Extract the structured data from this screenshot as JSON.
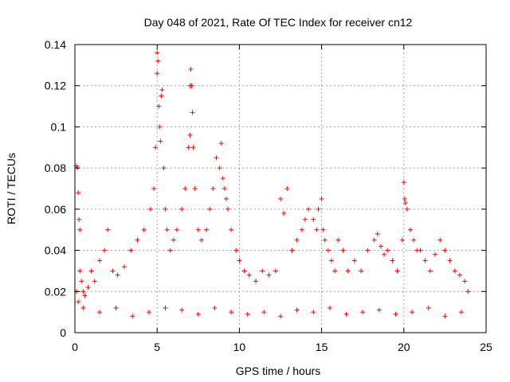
{
  "chart_data": {
    "type": "scatter",
    "title": "Day 048 of 2021, Rate Of TEC Index for receiver cn12",
    "xlabel": "GPS time / hours",
    "ylabel": "ROTI / TECUs",
    "xlim": [
      0,
      25
    ],
    "ylim": [
      0,
      0.14
    ],
    "xticks": [
      0,
      5,
      10,
      15,
      20,
      25
    ],
    "xtick_labels": [
      "0",
      "5",
      "10",
      "15",
      "20",
      "25"
    ],
    "yticks": [
      0,
      0.02,
      0.04,
      0.06,
      0.08,
      0.1,
      0.12,
      0.14
    ],
    "ytick_labels": [
      "0",
      "0.02",
      "0.04",
      "0.06",
      "0.08",
      "0.1",
      "0.12",
      "0.14"
    ],
    "grid": true,
    "marker": "+",
    "color": "#ff0000",
    "series": [
      {
        "name": "ROTI",
        "x": [
          0.1,
          0.15,
          0.2,
          0.25,
          0.3,
          0.1,
          0.2,
          0.3,
          0.4,
          0.5,
          0.6,
          0.8,
          1.0,
          1.2,
          1.5,
          1.8,
          2.0,
          2.3,
          2.6,
          3.0,
          3.4,
          3.8,
          4.2,
          4.6,
          4.8,
          4.9,
          5.0,
          5.0,
          5.05,
          5.1,
          5.15,
          5.2,
          5.25,
          5.3,
          5.4,
          5.5,
          5.6,
          5.8,
          6.0,
          6.2,
          6.5,
          6.7,
          6.9,
          7.0,
          7.0,
          7.05,
          7.1,
          7.15,
          7.2,
          7.3,
          7.5,
          7.7,
          8.0,
          8.2,
          8.4,
          8.6,
          8.8,
          8.9,
          9.0,
          9.1,
          9.2,
          9.3,
          9.5,
          9.8,
          10.0,
          10.3,
          10.6,
          11.0,
          11.4,
          11.8,
          12.2,
          12.5,
          12.7,
          12.9,
          13.2,
          13.5,
          13.8,
          14.0,
          14.2,
          14.5,
          14.7,
          14.8,
          15.0,
          15.1,
          15.2,
          15.4,
          15.6,
          15.8,
          16.0,
          16.3,
          16.6,
          17.0,
          17.4,
          17.8,
          18.2,
          18.4,
          18.6,
          18.8,
          19.0,
          19.3,
          19.6,
          19.9,
          20.0,
          20.05,
          20.1,
          20.2,
          20.4,
          20.6,
          20.8,
          21.0,
          21.3,
          21.6,
          21.9,
          22.2,
          22.5,
          22.8,
          23.1,
          23.4,
          23.7,
          23.9,
          0.5,
          1.5,
          2.5,
          3.5,
          4.5,
          5.5,
          6.5,
          7.5,
          8.5,
          9.5,
          10.5,
          11.5,
          12.5,
          13.5,
          14.5,
          15.5,
          16.5,
          17.5,
          18.5,
          19.5,
          20.5,
          21.5,
          22.5,
          23.5
        ],
        "y": [
          0.081,
          0.08,
          0.068,
          0.055,
          0.05,
          0.02,
          0.015,
          0.03,
          0.025,
          0.02,
          0.018,
          0.022,
          0.03,
          0.025,
          0.035,
          0.04,
          0.05,
          0.03,
          0.028,
          0.032,
          0.04,
          0.045,
          0.05,
          0.06,
          0.07,
          0.09,
          0.136,
          0.126,
          0.132,
          0.11,
          0.1,
          0.093,
          0.115,
          0.118,
          0.08,
          0.06,
          0.05,
          0.04,
          0.045,
          0.05,
          0.06,
          0.07,
          0.09,
          0.096,
          0.12,
          0.128,
          0.12,
          0.107,
          0.09,
          0.07,
          0.05,
          0.045,
          0.05,
          0.06,
          0.07,
          0.085,
          0.08,
          0.092,
          0.075,
          0.07,
          0.065,
          0.06,
          0.05,
          0.04,
          0.035,
          0.03,
          0.028,
          0.025,
          0.03,
          0.028,
          0.03,
          0.065,
          0.058,
          0.07,
          0.04,
          0.045,
          0.05,
          0.055,
          0.06,
          0.055,
          0.05,
          0.06,
          0.065,
          0.05,
          0.045,
          0.04,
          0.035,
          0.03,
          0.045,
          0.04,
          0.03,
          0.035,
          0.03,
          0.04,
          0.045,
          0.048,
          0.042,
          0.038,
          0.04,
          0.035,
          0.03,
          0.045,
          0.073,
          0.065,
          0.063,
          0.06,
          0.05,
          0.045,
          0.04,
          0.04,
          0.035,
          0.03,
          0.038,
          0.045,
          0.04,
          0.035,
          0.03,
          0.028,
          0.025,
          0.02,
          0.012,
          0.01,
          0.012,
          0.008,
          0.01,
          0.012,
          0.011,
          0.009,
          0.012,
          0.01,
          0.009,
          0.01,
          0.008,
          0.011,
          0.01,
          0.012,
          0.009,
          0.01,
          0.011,
          0.009,
          0.01,
          0.012,
          0.008,
          0.01
        ]
      }
    ]
  }
}
